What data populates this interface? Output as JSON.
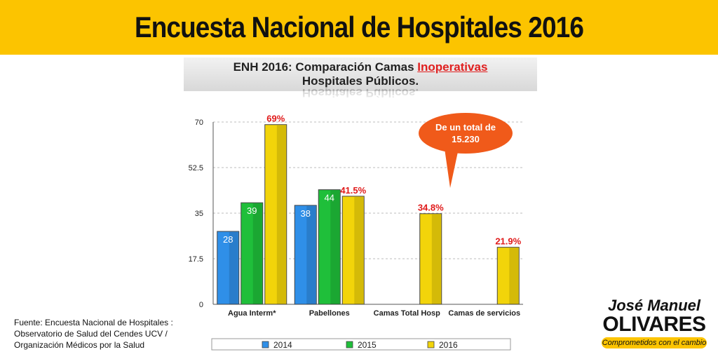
{
  "banner": {
    "title": "Encuesta Nacional de Hospitales 2016",
    "bg_color": "#fcc400"
  },
  "chart_title": {
    "prefix": "ENH 2016:  Comparación Camas ",
    "highlight": "Inoperativas",
    "line2": "Hospitales Públicos.",
    "highlight_color": "#e02020"
  },
  "chart_data": {
    "type": "bar",
    "categories": [
      "Agua Interm*",
      "Pabellones",
      "Camas Total Hosp",
      "Camas de servicios"
    ],
    "series": [
      {
        "name": "2014",
        "values": [
          28,
          38,
          null,
          null
        ],
        "color": "#2f8fe8",
        "value_labels": [
          "28",
          "38",
          "",
          ""
        ]
      },
      {
        "name": "2015",
        "values": [
          39,
          44,
          null,
          null
        ],
        "color": "#1fbf3a",
        "value_labels": [
          "39",
          "44",
          "",
          ""
        ]
      },
      {
        "name": "2016",
        "values": [
          69,
          41.5,
          34.8,
          21.9
        ],
        "color": "#f2d40a",
        "value_labels": [
          "69%",
          "41.5%",
          "34.8%",
          "21.9%"
        ]
      }
    ],
    "ylim": [
      0,
      70
    ],
    "yticks": [
      "0",
      "17.5",
      "35",
      "52.5",
      "70"
    ],
    "grid": true,
    "legend_position": "bottom",
    "annotation": {
      "line1": "De un total de",
      "line2": "15.230",
      "color": "#f05a1a"
    }
  },
  "source": {
    "line1": "Fuente: Encuesta Nacional de Hospitales :",
    "line2": "Observatorio de Salud del Cendes UCV /",
    "line3": "Organización Médicos por la Salud"
  },
  "brand": {
    "first_name": "José Manuel",
    "last_name": "OLIVARES",
    "tagline": "Comprometidos con el cambio"
  }
}
